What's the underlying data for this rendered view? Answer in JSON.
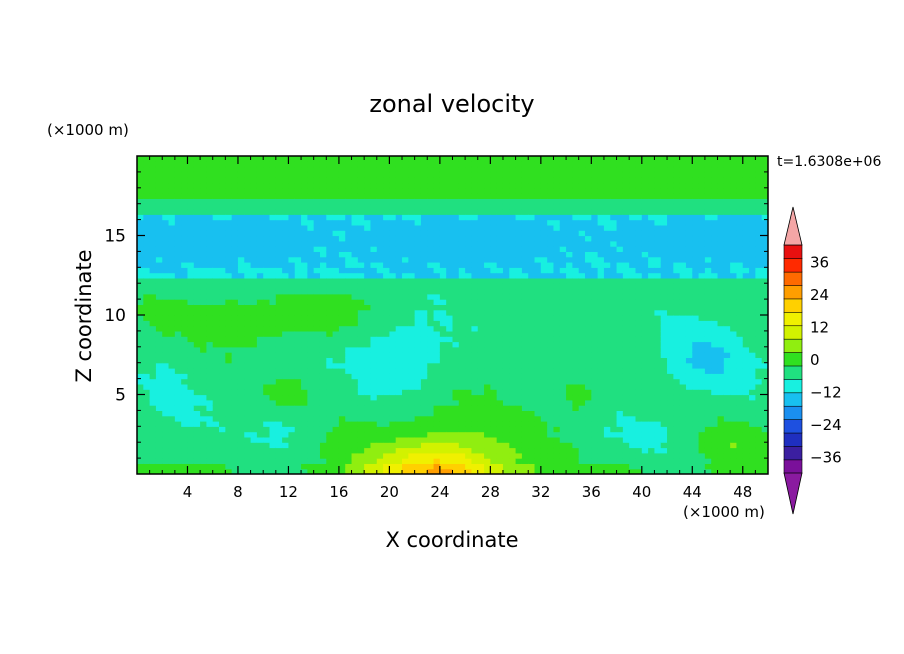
{
  "chart_data": {
    "type": "heatmap",
    "title": "zonal velocity",
    "xlabel": "X coordinate",
    "ylabel": "Z coordinate",
    "x_unit_label": "(×1000 m)",
    "y_unit_label": "(×1000 m)",
    "time_label": "t=1.6308e+06",
    "xlim": [
      0,
      50
    ],
    "ylim": [
      0,
      20
    ],
    "x_ticks": [
      4,
      8,
      12,
      16,
      20,
      24,
      28,
      32,
      36,
      40,
      44,
      48
    ],
    "x_tick_labels": [
      "4",
      "8",
      "12",
      "16",
      "20",
      "24",
      "28",
      "32",
      "36",
      "40",
      "44",
      "48"
    ],
    "y_ticks": [
      5,
      10,
      15
    ],
    "y_tick_labels": [
      "5",
      "10",
      "15"
    ],
    "grid": false,
    "colorbar": {
      "min": -42,
      "max": 42,
      "step": 6,
      "labels": [
        "36",
        "24",
        "12",
        "0",
        "−12",
        "−24",
        "−36"
      ],
      "label_values": [
        36,
        24,
        12,
        0,
        -12,
        -24,
        -36
      ],
      "colors": [
        "#7a109a",
        "#3b1fa0",
        "#1f2fc0",
        "#1e50e0",
        "#1a8ff0",
        "#18c0f0",
        "#18f0e0",
        "#20e080",
        "#30e020",
        "#90ee10",
        "#d2f200",
        "#f0f000",
        "#ffd000",
        "#ff9e00",
        "#ff6a00",
        "#ff2a00",
        "#e81010"
      ],
      "over_color": "#f4a6a6",
      "under_color": "#8a1aa0",
      "placement": "right"
    },
    "levels": [
      -24,
      -18,
      -12,
      -6,
      0,
      6,
      12,
      18,
      24,
      30,
      36
    ]
  }
}
